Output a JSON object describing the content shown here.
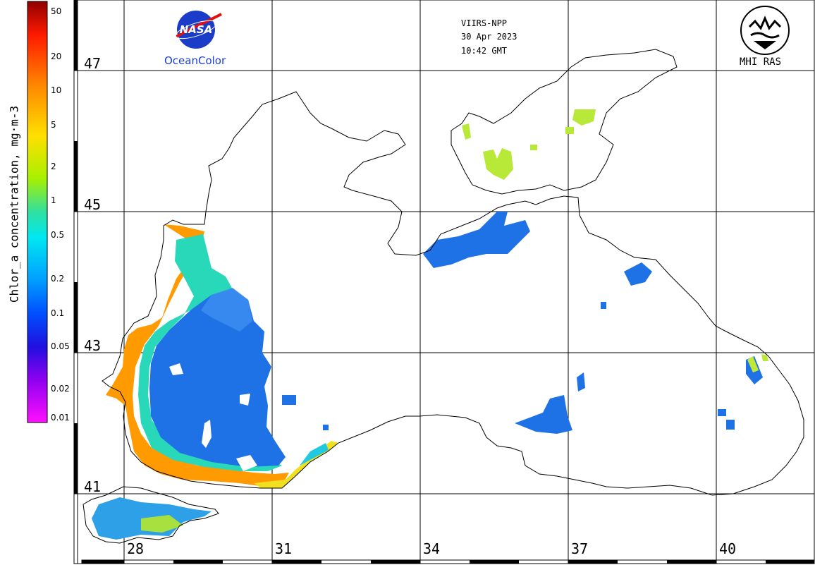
{
  "header": {
    "sensor": "VIIRS-NPP",
    "date": "30 Apr 2023",
    "time": "10:42 GMT"
  },
  "logos": {
    "left_brand": "NASA",
    "left_label": "OceanColor",
    "right_label": "MHI RAS"
  },
  "colorbar": {
    "title": "Chlor_a concentration, mg·m-3",
    "ticks": [
      "50",
      "20",
      "10",
      "5",
      "2",
      "1",
      "0.5",
      "0.2",
      "0.1",
      "0.05",
      "0.02",
      "0.01"
    ],
    "colors": [
      "#b00000",
      "#ff2a00",
      "#ff8c00",
      "#ffd200",
      "#c8f000",
      "#5ae07a",
      "#00e0e0",
      "#00a0ff",
      "#0050ff",
      "#1a10d0",
      "#8a00e8",
      "#ff00ff"
    ]
  },
  "grid": {
    "latitudes": [
      "47",
      "45",
      "43",
      "41"
    ],
    "longitudes": [
      "28",
      "31",
      "34",
      "37",
      "40"
    ]
  },
  "palette": {
    "coast": "#000000",
    "grid": "#000000",
    "bloom_high": "#ff8000",
    "bloom_mid": "#b8e030",
    "open_sea": "#1f6fe0"
  }
}
